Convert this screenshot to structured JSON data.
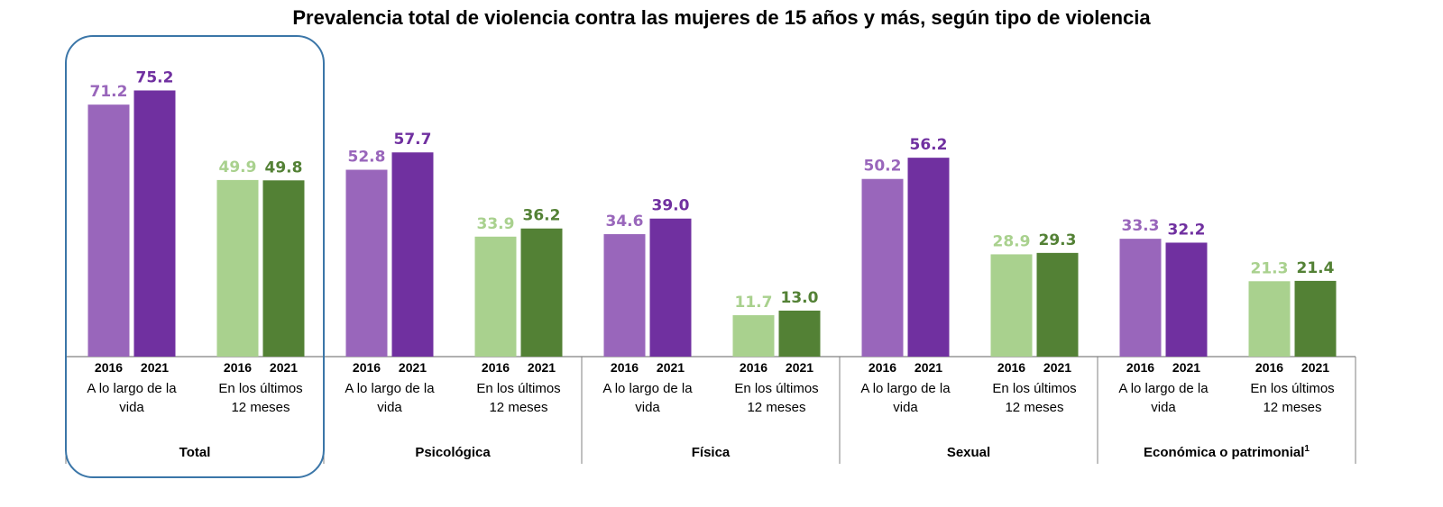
{
  "chart_data": {
    "type": "bar",
    "title": "Prevalencia total de violencia contra las mujeres de 15 años y más, según tipo de violencia",
    "categories": [
      "Total",
      "Psicológica",
      "Física",
      "Sexual",
      "Económica o patrimonial"
    ],
    "category_superscripts": [
      "",
      "",
      "",
      "",
      "1"
    ],
    "periods": [
      {
        "line1": "A lo largo de la",
        "line2": "vida",
        "years": [
          "2016",
          "2021"
        ]
      },
      {
        "line1": "En los últimos",
        "line2": "12 meses",
        "years": [
          "2016",
          "2021"
        ]
      }
    ],
    "series": [
      {
        "values": [
          71.2,
          52.8,
          34.6,
          50.2,
          33.3
        ],
        "labels": [
          "71.2",
          "52.8",
          "34.6",
          "50.2",
          "33.3"
        ]
      },
      {
        "values": [
          75.2,
          57.7,
          39.0,
          56.2,
          32.2
        ],
        "labels": [
          "75.2",
          "57.7",
          "39.0",
          "56.2",
          "32.2"
        ]
      },
      {
        "values": [
          49.9,
          33.9,
          11.7,
          28.9,
          21.3
        ],
        "labels": [
          "49.9",
          "33.9",
          "11.7",
          "28.9",
          "21.3"
        ]
      },
      {
        "values": [
          49.8,
          36.2,
          13.0,
          29.3,
          21.4
        ],
        "labels": [
          "49.8",
          "36.2",
          "13.0",
          "29.3",
          "21.4"
        ]
      }
    ],
    "ylim": [
      0,
      80
    ],
    "grid": false,
    "legend": "none",
    "highlight": "Total",
    "colors": {
      "lifetime_2016": "#9966bb",
      "lifetime_2021": "#7030a0",
      "last12_2016": "#a9d18e",
      "last12_2021": "#538135",
      "highlight_border": "#3b76a8"
    }
  }
}
